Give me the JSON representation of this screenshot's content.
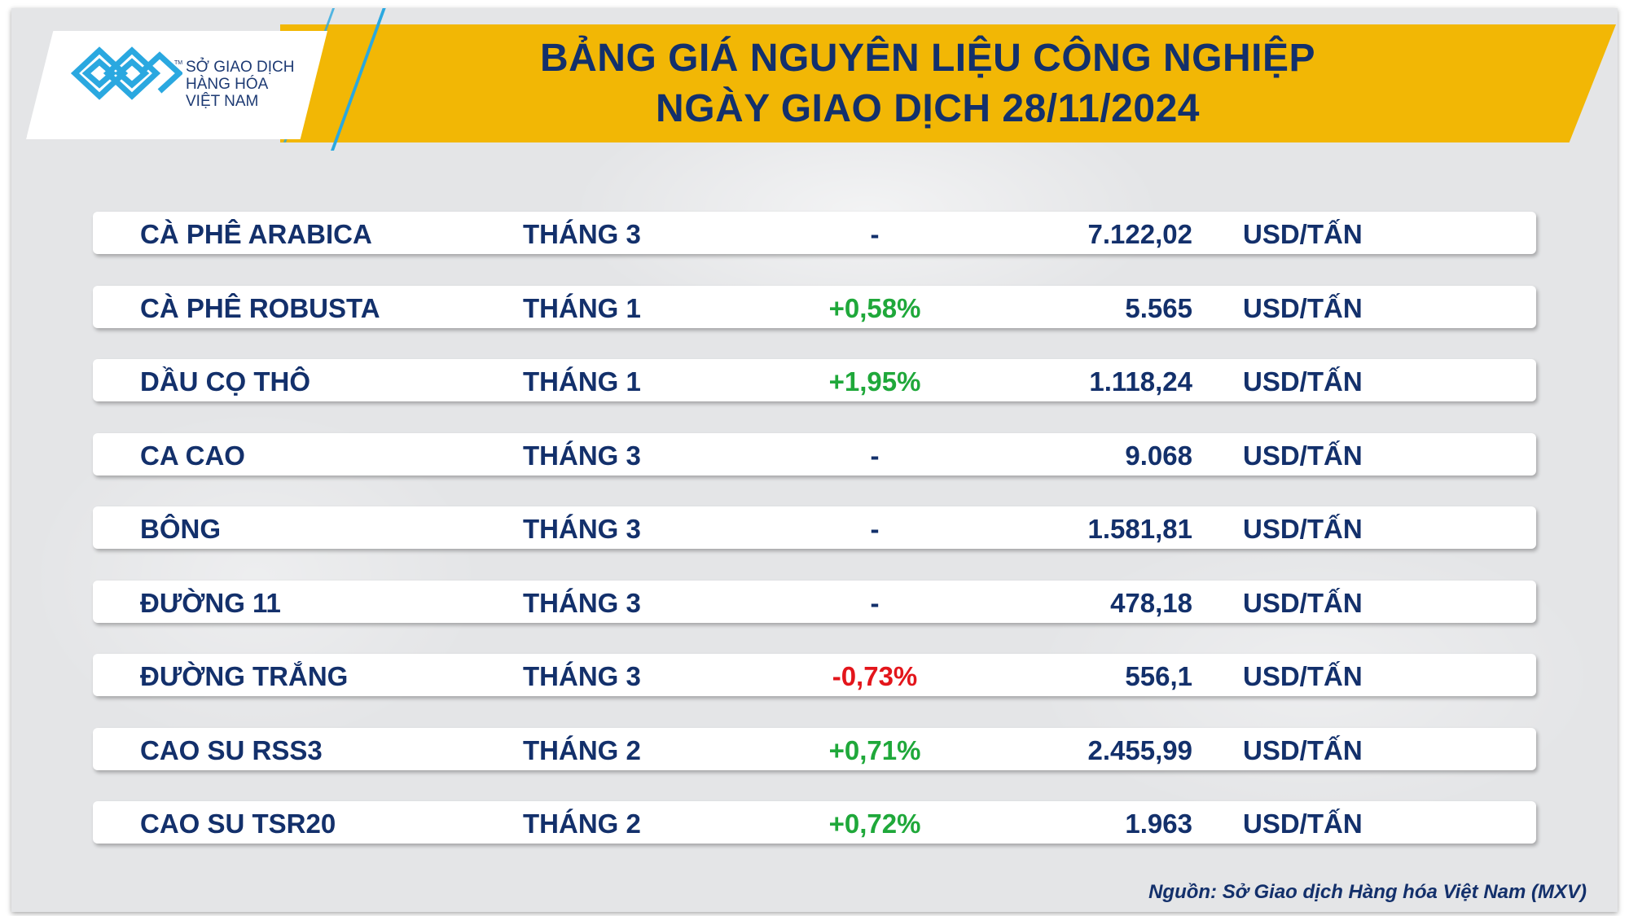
{
  "logo": {
    "line1": "SỞ GIAO DỊCH",
    "line2": "HÀNG HÓA",
    "line3": "VIỆT NAM",
    "tm": "TM",
    "color": "#2aa8e0"
  },
  "title": {
    "line1": "BẢNG GIÁ NGUYÊN LIỆU CÔNG NGHIỆP",
    "line2": "NGÀY GIAO DỊCH 28/11/2024"
  },
  "colors": {
    "band": "#f2b705",
    "text": "#13306b",
    "up": "#1fa83a",
    "down": "#e3151b",
    "neutral": "#13306b"
  },
  "rows": [
    {
      "name": "CÀ PHÊ ARABICA",
      "month": "THÁNG 3",
      "change": "-",
      "direction": "neutral",
      "price": "7.122,02",
      "unit": "USD/TẤN"
    },
    {
      "name": "CÀ PHÊ ROBUSTA",
      "month": "THÁNG 1",
      "change": "+0,58%",
      "direction": "up",
      "price": "5.565",
      "unit": "USD/TẤN"
    },
    {
      "name": "DẦU CỌ THÔ",
      "month": "THÁNG 1",
      "change": "+1,95%",
      "direction": "up",
      "price": "1.118,24",
      "unit": "USD/TẤN"
    },
    {
      "name": "CA CAO",
      "month": "THÁNG 3",
      "change": "-",
      "direction": "neutral",
      "price": "9.068",
      "unit": "USD/TẤN"
    },
    {
      "name": "BÔNG",
      "month": "THÁNG 3",
      "change": "-",
      "direction": "neutral",
      "price": "1.581,81",
      "unit": "USD/TẤN"
    },
    {
      "name": "ĐƯỜNG 11",
      "month": "THÁNG 3",
      "change": "-",
      "direction": "neutral",
      "price": "478,18",
      "unit": "USD/TẤN"
    },
    {
      "name": "ĐƯỜNG TRẮNG",
      "month": "THÁNG 3",
      "change": "-0,73%",
      "direction": "down",
      "price": "556,1",
      "unit": "USD/TẤN"
    },
    {
      "name": "CAO SU RSS3",
      "month": "THÁNG 2",
      "change": "+0,71%",
      "direction": "up",
      "price": "2.455,99",
      "unit": "USD/TẤN"
    },
    {
      "name": "CAO SU TSR20",
      "month": "THÁNG 2",
      "change": "+0,72%",
      "direction": "up",
      "price": "1.963",
      "unit": "USD/TẤN"
    }
  ],
  "footer": "Nguồn: Sở Giao dịch Hàng hóa Việt Nam (MXV)"
}
